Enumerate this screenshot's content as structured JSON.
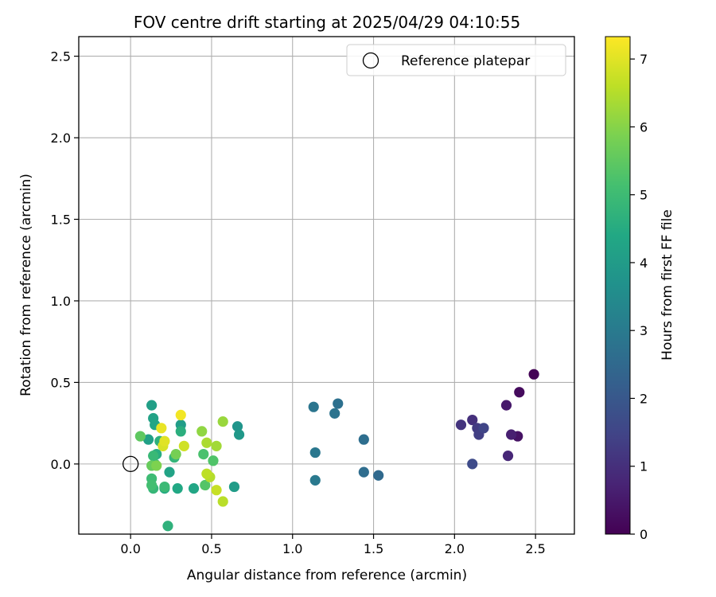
{
  "chart_data": {
    "type": "scatter",
    "title": "FOV centre drift starting at 2025/04/29 04:10:55",
    "xlabel": "Angular distance from reference (arcmin)",
    "ylabel": "Rotation from reference (arcmin)",
    "xlim": [
      -0.32,
      2.74
    ],
    "ylim": [
      -0.43,
      2.62
    ],
    "xticks": [
      0.0,
      0.5,
      1.0,
      1.5,
      2.0,
      2.5
    ],
    "xtick_labels": [
      "0.0",
      "0.5",
      "1.0",
      "1.5",
      "2.0",
      "2.5"
    ],
    "yticks": [
      0.0,
      0.5,
      1.0,
      1.5,
      2.0,
      2.5
    ],
    "ytick_labels": [
      "0.0",
      "0.5",
      "1.0",
      "1.5",
      "2.0",
      "2.5"
    ],
    "grid": true,
    "legend": {
      "placement": "top-right",
      "entries": [
        "Reference platepar"
      ]
    },
    "reference": {
      "x": 0.0,
      "y": 0.0
    },
    "colorbar": {
      "label": "Hours from first FF file",
      "min": 0,
      "max": 7.33,
      "ticks": [
        0,
        1,
        2,
        3,
        4,
        5,
        6,
        7
      ],
      "tick_labels": [
        "0",
        "1",
        "2",
        "3",
        "4",
        "5",
        "6",
        "7"
      ],
      "colormap": "viridis"
    },
    "points": [
      {
        "x": 2.49,
        "y": 0.55,
        "c": 0.05
      },
      {
        "x": 2.4,
        "y": 0.44,
        "c": 0.2
      },
      {
        "x": 2.39,
        "y": 0.17,
        "c": 0.35
      },
      {
        "x": 2.32,
        "y": 0.36,
        "c": 0.5
      },
      {
        "x": 2.35,
        "y": 0.18,
        "c": 0.65
      },
      {
        "x": 2.33,
        "y": 0.05,
        "c": 0.8
      },
      {
        "x": 2.11,
        "y": 0.27,
        "c": 1.0
      },
      {
        "x": 2.04,
        "y": 0.24,
        "c": 1.1
      },
      {
        "x": 2.14,
        "y": 0.22,
        "c": 1.25
      },
      {
        "x": 2.15,
        "y": 0.18,
        "c": 1.35
      },
      {
        "x": 2.18,
        "y": 0.22,
        "c": 1.5
      },
      {
        "x": 2.11,
        "y": 0.0,
        "c": 1.65
      },
      {
        "x": 1.53,
        "y": -0.07,
        "c": 2.5
      },
      {
        "x": 1.44,
        "y": -0.05,
        "c": 2.6
      },
      {
        "x": 1.44,
        "y": 0.15,
        "c": 2.65
      },
      {
        "x": 1.28,
        "y": 0.37,
        "c": 2.7
      },
      {
        "x": 1.26,
        "y": 0.31,
        "c": 2.8
      },
      {
        "x": 1.13,
        "y": 0.35,
        "c": 2.85
      },
      {
        "x": 1.14,
        "y": 0.07,
        "c": 2.9
      },
      {
        "x": 1.14,
        "y": -0.1,
        "c": 2.95
      },
      {
        "x": 0.66,
        "y": 0.23,
        "c": 3.8
      },
      {
        "x": 0.67,
        "y": 0.18,
        "c": 3.9
      },
      {
        "x": 0.64,
        "y": -0.14,
        "c": 4.0
      },
      {
        "x": 0.31,
        "y": 0.24,
        "c": 4.05
      },
      {
        "x": 0.13,
        "y": 0.36,
        "c": 4.1
      },
      {
        "x": 0.11,
        "y": 0.15,
        "c": 4.15
      },
      {
        "x": 0.14,
        "y": 0.28,
        "c": 4.2
      },
      {
        "x": 0.24,
        "y": -0.05,
        "c": 4.25
      },
      {
        "x": 0.15,
        "y": 0.24,
        "c": 4.3
      },
      {
        "x": 0.39,
        "y": -0.15,
        "c": 4.35
      },
      {
        "x": 0.29,
        "y": -0.15,
        "c": 4.4
      },
      {
        "x": 0.21,
        "y": -0.15,
        "c": 4.5
      },
      {
        "x": 0.16,
        "y": 0.06,
        "c": 4.55
      },
      {
        "x": 0.31,
        "y": 0.2,
        "c": 4.6
      },
      {
        "x": 0.18,
        "y": 0.14,
        "c": 4.65
      },
      {
        "x": 0.23,
        "y": -0.38,
        "c": 4.7
      },
      {
        "x": 0.15,
        "y": 0.0,
        "c": 4.75
      },
      {
        "x": 0.27,
        "y": 0.04,
        "c": 4.8
      },
      {
        "x": 0.14,
        "y": -0.15,
        "c": 4.85
      },
      {
        "x": 0.14,
        "y": 0.05,
        "c": 4.9
      },
      {
        "x": 0.21,
        "y": -0.14,
        "c": 4.95
      },
      {
        "x": 0.13,
        "y": -0.09,
        "c": 5.0
      },
      {
        "x": 0.13,
        "y": -0.13,
        "c": 5.1
      },
      {
        "x": 0.45,
        "y": 0.06,
        "c": 5.2
      },
      {
        "x": 0.51,
        "y": 0.02,
        "c": 5.3
      },
      {
        "x": 0.46,
        "y": -0.13,
        "c": 5.35
      },
      {
        "x": 0.06,
        "y": 0.17,
        "c": 5.5
      },
      {
        "x": 0.13,
        "y": -0.01,
        "c": 5.6
      },
      {
        "x": 0.28,
        "y": 0.06,
        "c": 5.8
      },
      {
        "x": 0.16,
        "y": -0.01,
        "c": 5.9
      },
      {
        "x": 0.44,
        "y": 0.2,
        "c": 6.1
      },
      {
        "x": 0.57,
        "y": 0.26,
        "c": 6.2
      },
      {
        "x": 0.53,
        "y": 0.11,
        "c": 6.3
      },
      {
        "x": 0.47,
        "y": 0.13,
        "c": 6.4
      },
      {
        "x": 0.49,
        "y": -0.08,
        "c": 6.5
      },
      {
        "x": 0.57,
        "y": -0.23,
        "c": 6.55
      },
      {
        "x": 0.47,
        "y": -0.06,
        "c": 6.6
      },
      {
        "x": 0.53,
        "y": -0.16,
        "c": 6.7
      },
      {
        "x": 0.33,
        "y": 0.11,
        "c": 6.8
      },
      {
        "x": 0.2,
        "y": 0.11,
        "c": 6.9
      },
      {
        "x": 0.21,
        "y": 0.14,
        "c": 7.0
      },
      {
        "x": 0.19,
        "y": 0.22,
        "c": 7.1
      },
      {
        "x": 0.31,
        "y": 0.3,
        "c": 7.2
      }
    ]
  }
}
